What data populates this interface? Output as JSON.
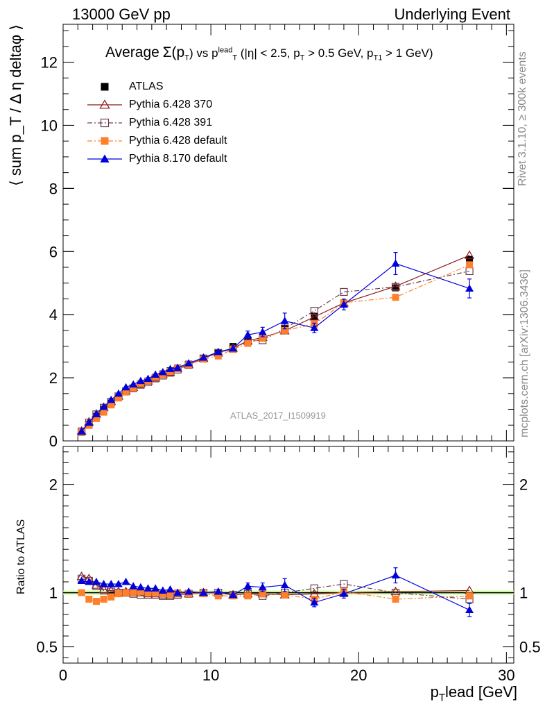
{
  "header": {
    "left": "13000 GeV pp",
    "right": "Underlying Event"
  },
  "side_text": {
    "rivet": "Rivet 3.1.10, ≥ 300k events",
    "mcplots": "mcplots.cern.ch [arXiv:1306.3436]"
  },
  "plot_title": {
    "prefix": "Average",
    "sigma": "Σ(p",
    "sigma_sub": "T",
    "sigma_close": ")",
    "vs": " vs p",
    "vs_sup": "lead",
    "vs_sub": "T",
    "cuts": " (|η| < 2.5, p",
    "cuts_sub": "T",
    "cuts_mid": " > 0.5 GeV, p",
    "cuts_sub2": "T1",
    "cuts_end": " > 1 GeV)"
  },
  "watermark": "ATLAS_2017_I1509919",
  "axis_titles": {
    "y_main": "⟨ sum p_T / Δ η deltaφ ⟩",
    "y_ratio": "Ratio to ATLAS",
    "x_main": "p",
    "x_sub": "T",
    "x_rest": "lead [GeV]"
  },
  "legend": [
    {
      "label": "ATLAS",
      "color": "#000000",
      "marker": "square-filled",
      "line": "none"
    },
    {
      "label": "Pythia 6.428 370",
      "color": "#8b1a1a",
      "marker": "triangle-open",
      "line": "solid"
    },
    {
      "label": "Pythia 6.428 391",
      "color": "#6b3e4e",
      "marker": "square-open",
      "line": "dashdot"
    },
    {
      "label": "Pythia 6.428 default",
      "color": "#ff7f2a",
      "marker": "square-filled",
      "line": "dashdot"
    },
    {
      "label": "Pythia 8.170 default",
      "color": "#0000dd",
      "marker": "triangle-filled",
      "line": "solid"
    }
  ],
  "chart_data": [
    {
      "type": "line",
      "panel": "main",
      "xlim": [
        0,
        30.5
      ],
      "ylim": [
        0,
        13.2
      ],
      "y_ticks": [
        0,
        2,
        4,
        6,
        8,
        10,
        12
      ],
      "x": [
        1.25,
        1.75,
        2.25,
        2.75,
        3.25,
        3.75,
        4.25,
        4.75,
        5.25,
        5.75,
        6.25,
        6.75,
        7.25,
        7.75,
        8.5,
        9.5,
        10.5,
        11.5,
        12.5,
        13.5,
        15.0,
        17.0,
        19.0,
        22.5,
        27.5
      ],
      "series": [
        {
          "name": "ATLAS",
          "color": "#000000",
          "values": [
            0.27,
            0.52,
            0.77,
            1.0,
            1.2,
            1.38,
            1.55,
            1.68,
            1.8,
            1.9,
            2.02,
            2.12,
            2.22,
            2.31,
            2.43,
            2.62,
            2.78,
            2.99,
            3.18,
            3.28,
            3.56,
            3.95,
            4.35,
            4.85,
            5.75
          ]
        },
        {
          "name": "Pythia 6.428 370",
          "color": "#8b1a1a",
          "values": [
            0.31,
            0.6,
            0.85,
            1.06,
            1.25,
            1.42,
            1.59,
            1.7,
            1.82,
            1.9,
            2.0,
            2.1,
            2.18,
            2.29,
            2.42,
            2.62,
            2.79,
            2.94,
            3.17,
            3.28,
            3.49,
            3.93,
            4.37,
            4.9,
            5.88
          ]
        },
        {
          "name": "Pythia 6.428 391",
          "color": "#6b3e4e",
          "values": [
            0.3,
            0.58,
            0.84,
            1.05,
            1.24,
            1.41,
            1.57,
            1.67,
            1.78,
            1.87,
            1.98,
            2.07,
            2.16,
            2.26,
            2.41,
            2.61,
            2.79,
            2.92,
            3.16,
            3.19,
            3.56,
            4.12,
            4.72,
            4.88,
            5.38
          ]
        },
        {
          "name": "Pythia 6.428 default",
          "color": "#ff7f2a",
          "values": [
            0.27,
            0.49,
            0.71,
            0.91,
            1.14,
            1.36,
            1.55,
            1.68,
            1.82,
            1.9,
            2.02,
            2.1,
            2.2,
            2.3,
            2.41,
            2.59,
            2.69,
            2.9,
            3.09,
            3.25,
            3.5,
            3.7,
            4.38,
            4.55,
            5.58
          ]
        },
        {
          "name": "Pythia 8.170 default",
          "color": "#0000dd",
          "values": [
            0.3,
            0.58,
            0.85,
            1.08,
            1.3,
            1.5,
            1.7,
            1.79,
            1.9,
            1.97,
            2.1,
            2.18,
            2.28,
            2.32,
            2.46,
            2.64,
            2.82,
            2.93,
            3.36,
            3.45,
            3.8,
            3.58,
            4.32,
            5.62,
            4.83
          ]
        }
      ],
      "errors": {
        "series": "Pythia 8.170 default",
        "x": [
          12.5,
          13.5,
          15.0,
          17.0,
          19.0,
          22.5,
          27.5
        ],
        "values": [
          0.12,
          0.15,
          0.25,
          0.15,
          0.17,
          0.35,
          0.3
        ]
      }
    },
    {
      "type": "line",
      "panel": "ratio",
      "ylabel": "Ratio to ATLAS",
      "xlabel": "p_T lead [GeV]",
      "xlim": [
        0,
        30.5
      ],
      "ylim": [
        0.35,
        2.35
      ],
      "y_ticks": [
        0.5,
        1,
        2
      ],
      "x_ticks": [
        0,
        10,
        20,
        30
      ],
      "x": [
        1.25,
        1.75,
        2.25,
        2.75,
        3.25,
        3.75,
        4.25,
        4.75,
        5.25,
        5.75,
        6.25,
        6.75,
        7.25,
        7.75,
        8.5,
        9.5,
        10.5,
        11.5,
        12.5,
        13.5,
        15.0,
        17.0,
        19.0,
        22.5,
        27.5
      ],
      "series": [
        {
          "name": "Pythia 6.428 370",
          "color": "#8b1a1a",
          "values": [
            1.15,
            1.13,
            1.07,
            1.03,
            1.02,
            1.01,
            1.01,
            1.0,
            1.0,
            0.99,
            0.99,
            0.98,
            0.98,
            0.99,
            0.99,
            1.0,
            1.0,
            0.98,
            0.99,
            0.99,
            0.98,
            0.99,
            1.0,
            1.01,
            1.02
          ]
        },
        {
          "name": "Pythia 6.428 391",
          "color": "#6b3e4e",
          "values": [
            1.13,
            1.11,
            1.06,
            1.02,
            1.01,
            1.0,
            1.0,
            0.99,
            0.98,
            0.98,
            0.98,
            0.97,
            0.97,
            0.98,
            0.99,
            1.0,
            1.0,
            0.98,
            0.99,
            0.97,
            1.0,
            1.04,
            1.08,
            1.0,
            0.94
          ]
        },
        {
          "name": "Pythia 6.428 default",
          "color": "#ff7f2a",
          "values": [
            1.0,
            0.94,
            0.92,
            0.94,
            0.96,
            0.99,
            1.0,
            1.0,
            1.01,
            1.0,
            1.0,
            0.99,
            0.99,
            1.0,
            0.99,
            0.99,
            0.97,
            0.97,
            0.97,
            0.99,
            0.98,
            0.94,
            1.01,
            0.94,
            0.97
          ]
        },
        {
          "name": "Pythia 8.170 default",
          "color": "#0000dd",
          "values": [
            1.11,
            1.1,
            1.1,
            1.08,
            1.08,
            1.08,
            1.1,
            1.06,
            1.05,
            1.04,
            1.04,
            1.02,
            1.03,
            1.0,
            1.01,
            1.0,
            1.01,
            0.98,
            1.06,
            1.05,
            1.07,
            0.91,
            0.99,
            1.16,
            0.84
          ]
        }
      ],
      "errors": {
        "series": "Pythia 8.170 default",
        "x": [
          12.5,
          13.5,
          15.0,
          17.0,
          19.0,
          22.5,
          27.5
        ],
        "values": [
          0.03,
          0.04,
          0.06,
          0.04,
          0.04,
          0.07,
          0.06
        ]
      }
    }
  ]
}
